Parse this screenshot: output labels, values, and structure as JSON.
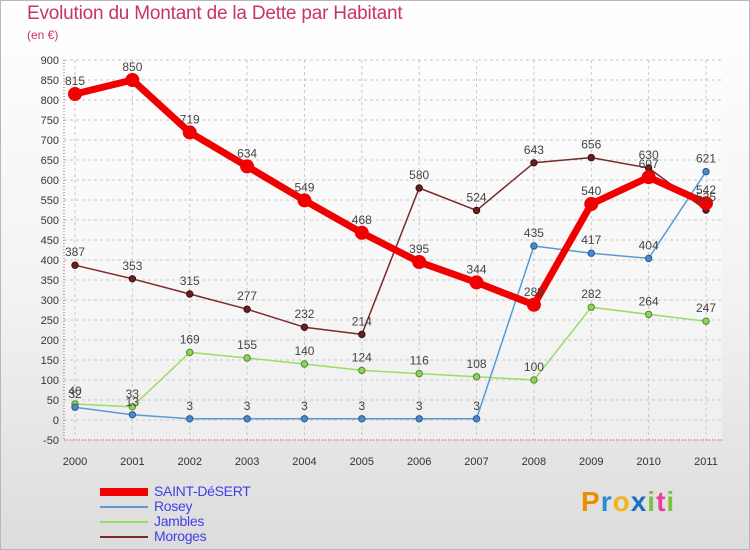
{
  "title": "Evolution du Montant de la Dette par Habitant",
  "unit": "(en €)",
  "brand": {
    "letters": [
      "P",
      "r",
      "o",
      "x",
      "i",
      "t",
      "i"
    ],
    "colors": [
      "#f08c00",
      "#2a8fd0",
      "#f2b51c",
      "#1f6fbf",
      "#7cc242",
      "#e8409a",
      "#7cc242"
    ]
  },
  "chart_data": {
    "type": "line",
    "title": "Evolution du Montant de la Dette par Habitant",
    "ylabel": "(en €)",
    "xlabel": "",
    "ylim": [
      -50,
      900
    ],
    "yticks": [
      -50,
      0,
      50,
      100,
      150,
      200,
      250,
      300,
      350,
      400,
      450,
      500,
      550,
      600,
      650,
      700,
      750,
      800,
      850,
      900
    ],
    "categories": [
      "2000",
      "2001",
      "2002",
      "2003",
      "2004",
      "2005",
      "2006",
      "2007",
      "2008",
      "2009",
      "2010",
      "2011"
    ],
    "grid": true,
    "legend": "bottom-left",
    "series": [
      {
        "name": "SAINT-DéSERT",
        "color": "#f00000",
        "values": [
          815,
          850,
          719,
          634,
          549,
          468,
          395,
          344,
          288,
          540,
          607,
          542
        ]
      },
      {
        "name": "Rosey",
        "color": "#5c9ad0",
        "values": [
          32,
          13,
          3,
          3,
          3,
          3,
          3,
          3,
          435,
          417,
          404,
          621
        ]
      },
      {
        "name": "Jambles",
        "color": "#99dd66",
        "values": [
          40,
          33,
          169,
          155,
          140,
          124,
          116,
          108,
          100,
          282,
          264,
          247
        ]
      },
      {
        "name": "Moroges",
        "color": "#7a2a2a",
        "values": [
          387,
          353,
          315,
          277,
          232,
          214,
          580,
          524,
          643,
          656,
          630,
          525
        ]
      }
    ]
  }
}
